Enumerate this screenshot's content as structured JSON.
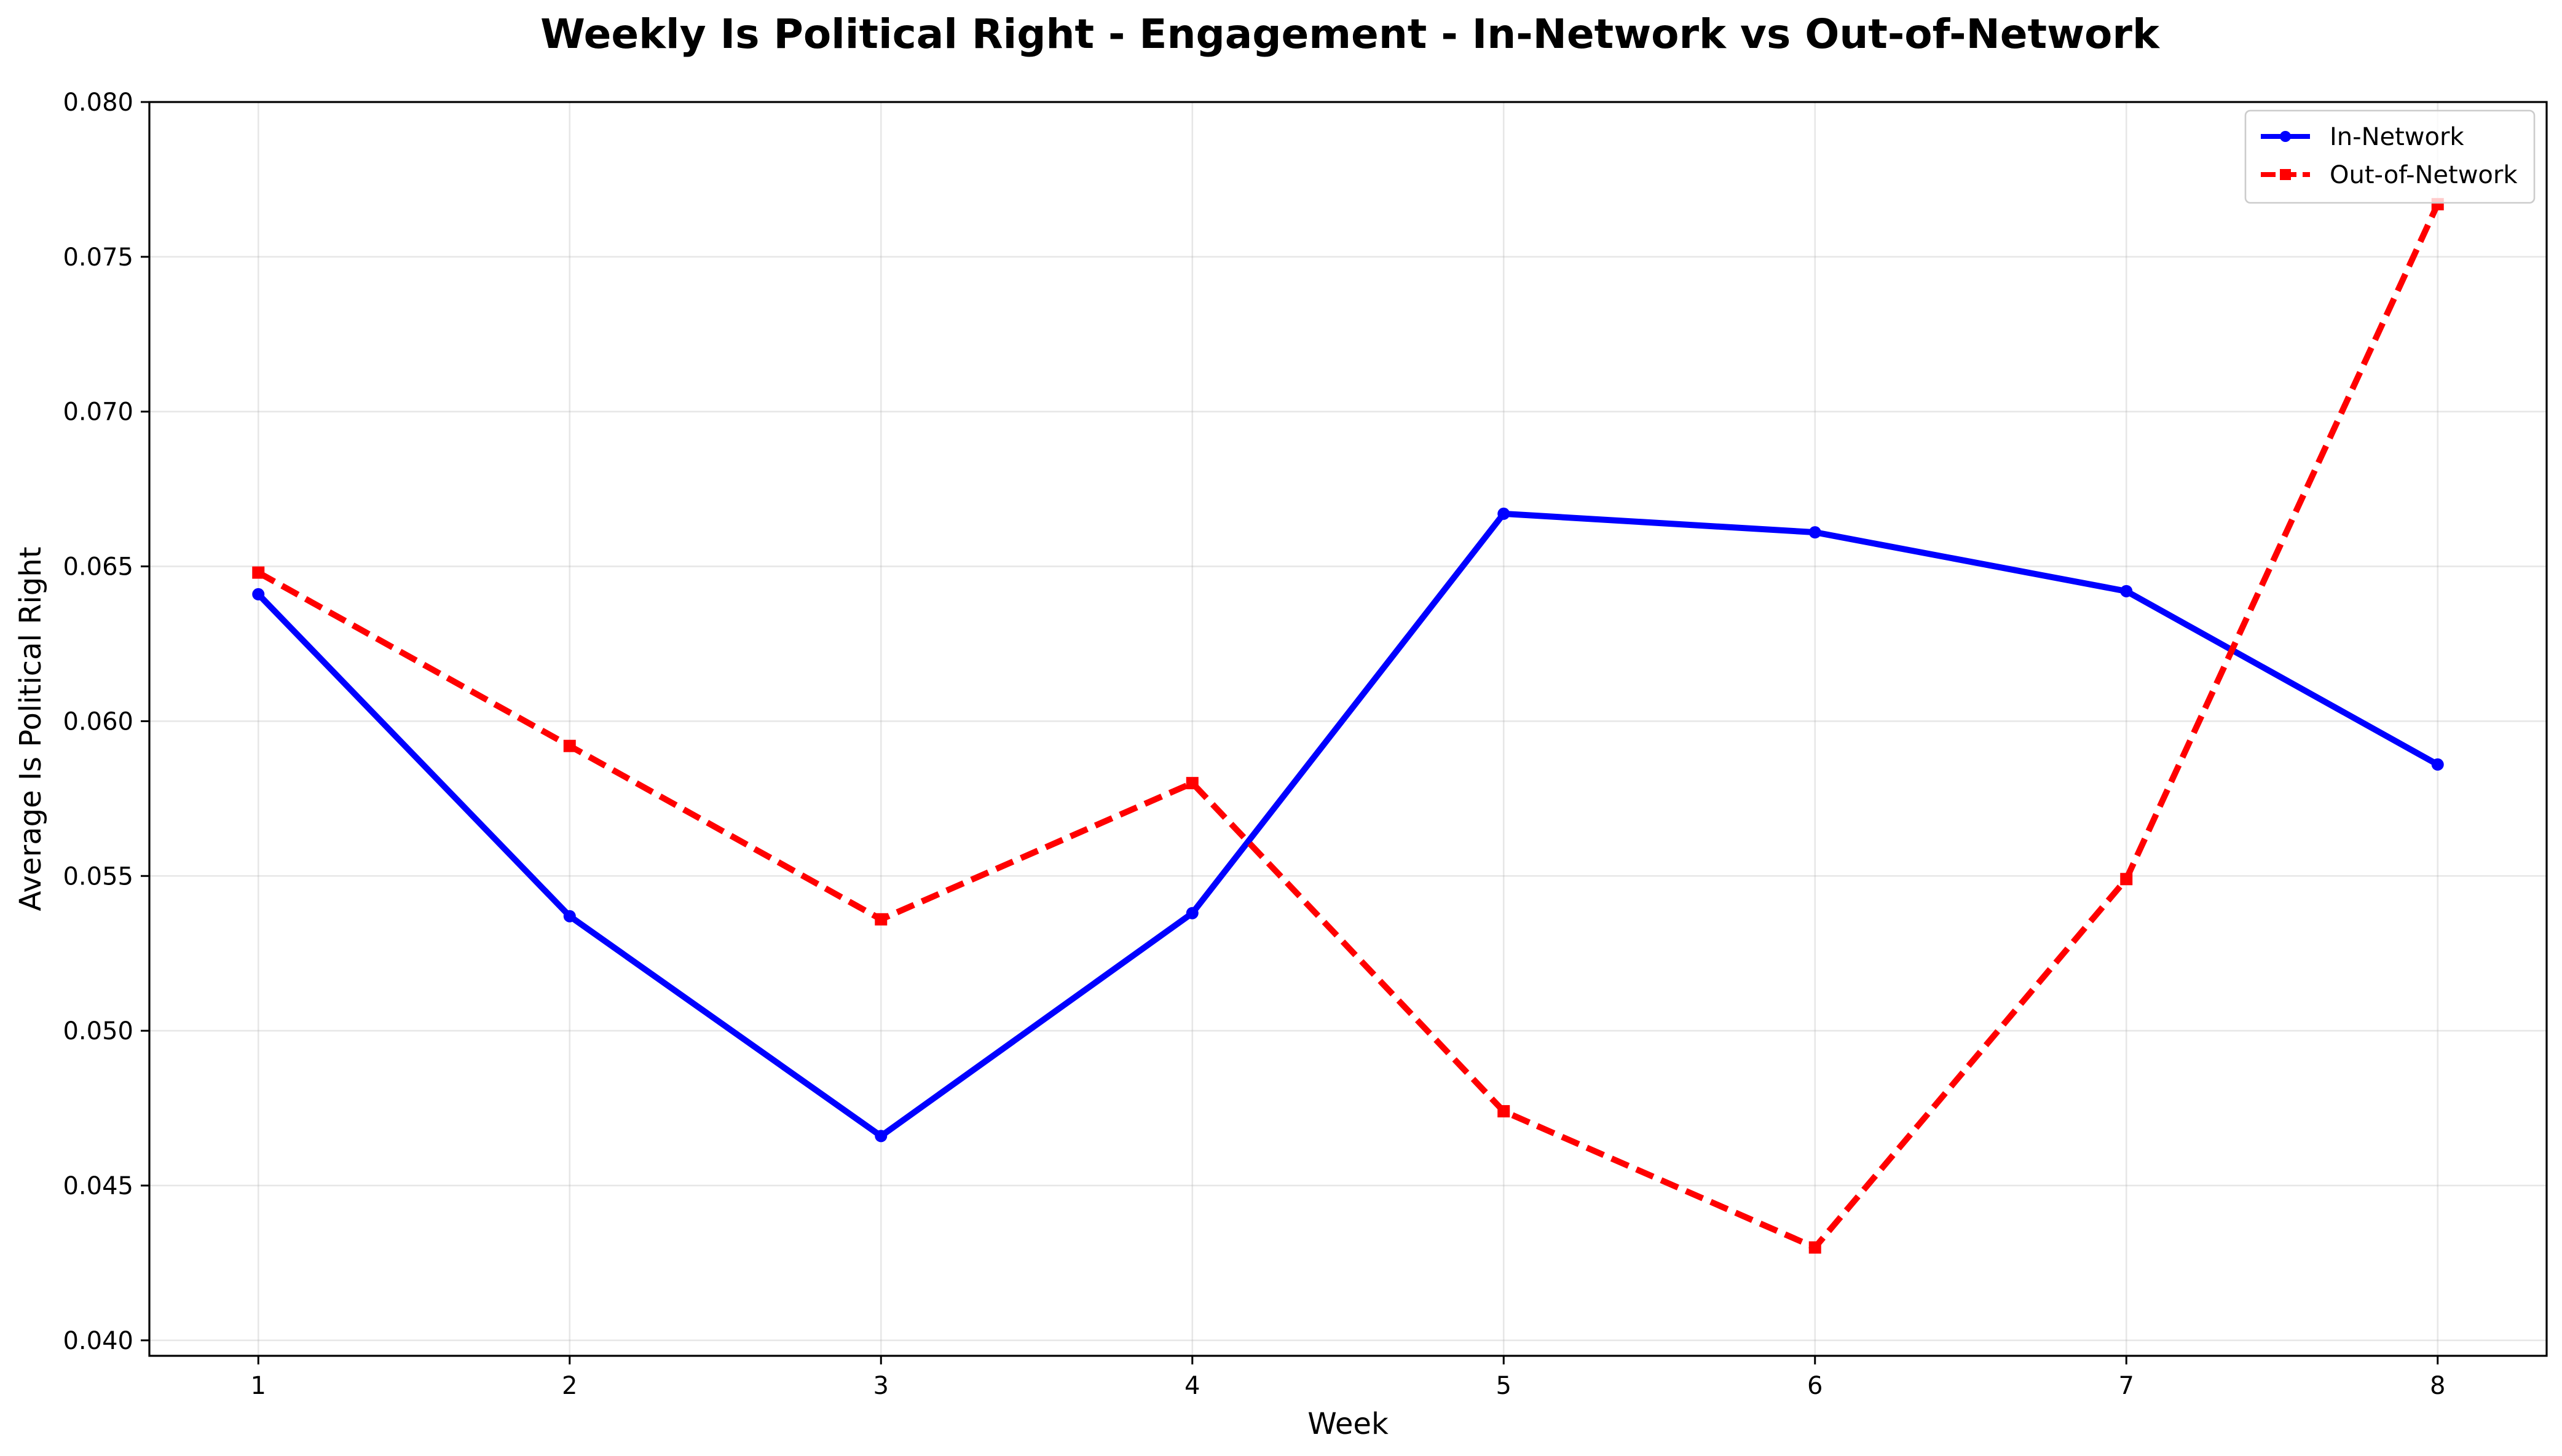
{
  "chart_data": {
    "type": "line",
    "title": "Weekly Is Political Right - Engagement - In-Network vs Out-of-Network",
    "xlabel": "Week",
    "ylabel": "Average Is Political Right",
    "x": [
      1,
      2,
      3,
      4,
      5,
      6,
      7,
      8
    ],
    "x_tick_labels": [
      "1",
      "2",
      "3",
      "4",
      "5",
      "6",
      "7",
      "8"
    ],
    "ylim": [
      0.0395,
      0.08
    ],
    "y_ticks": [
      0.04,
      0.045,
      0.05,
      0.055,
      0.06,
      0.065,
      0.07,
      0.075,
      0.08
    ],
    "y_tick_labels": [
      "0.040",
      "0.045",
      "0.050",
      "0.055",
      "0.060",
      "0.065",
      "0.070",
      "0.075",
      "0.080"
    ],
    "grid": true,
    "legend_position": "top-right",
    "series": [
      {
        "name": "In-Network",
        "color": "#0000ff",
        "line_style": "solid",
        "marker": "circle",
        "values": [
          0.0641,
          0.0537,
          0.0466,
          0.0538,
          0.0667,
          0.0661,
          0.0642,
          0.0586
        ]
      },
      {
        "name": "Out-of-Network",
        "color": "#ff0000",
        "line_style": "dashed",
        "marker": "square",
        "values": [
          0.0648,
          0.0592,
          0.0536,
          0.058,
          0.0474,
          0.043,
          0.0549,
          0.0767
        ]
      }
    ]
  }
}
